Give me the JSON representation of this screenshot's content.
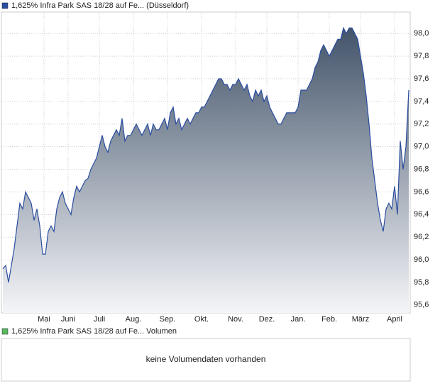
{
  "chart_data": {
    "type": "area",
    "legend": "1,625% Infra Park SAS 18/28 auf Fe... (Düsseldorf)",
    "color": "#2a4da0",
    "values": [
      95.92,
      95.95,
      95.8,
      95.95,
      96.1,
      96.3,
      96.5,
      96.45,
      96.6,
      96.55,
      96.5,
      96.35,
      96.45,
      96.3,
      96.05,
      96.05,
      96.25,
      96.3,
      96.25,
      96.45,
      96.55,
      96.6,
      96.5,
      96.45,
      96.4,
      96.55,
      96.65,
      96.6,
      96.65,
      96.7,
      96.72,
      96.8,
      96.85,
      96.9,
      97.0,
      97.1,
      97.0,
      96.95,
      97.05,
      97.1,
      97.15,
      97.1,
      97.25,
      97.05,
      97.1,
      97.1,
      97.15,
      97.2,
      97.15,
      97.1,
      97.15,
      97.2,
      97.1,
      97.2,
      97.15,
      97.15,
      97.2,
      97.25,
      97.15,
      97.3,
      97.35,
      97.2,
      97.25,
      97.15,
      97.2,
      97.25,
      97.2,
      97.25,
      97.3,
      97.3,
      97.35,
      97.35,
      97.4,
      97.45,
      97.5,
      97.55,
      97.6,
      97.6,
      97.55,
      97.55,
      97.5,
      97.55,
      97.55,
      97.6,
      97.55,
      97.5,
      97.55,
      97.45,
      97.4,
      97.5,
      97.45,
      97.5,
      97.4,
      97.45,
      97.35,
      97.3,
      97.25,
      97.2,
      97.2,
      97.25,
      97.3,
      97.3,
      97.3,
      97.3,
      97.35,
      97.5,
      97.5,
      97.5,
      97.55,
      97.6,
      97.7,
      97.75,
      97.85,
      97.9,
      97.85,
      97.8,
      97.85,
      97.9,
      97.95,
      97.95,
      98.05,
      98.0,
      98.05,
      98.05,
      98.0,
      97.95,
      97.8,
      97.65,
      97.45,
      97.2,
      96.9,
      96.7,
      96.5,
      96.35,
      96.25,
      96.45,
      96.5,
      96.45,
      96.65,
      96.4,
      97.05,
      96.8,
      97.0,
      97.5
    ],
    "xlim": [
      -0.5,
      143.5
    ],
    "xticks": [
      {
        "value": 14.5,
        "label": "Mai"
      },
      {
        "value": 23,
        "label": "Juni"
      },
      {
        "value": 34,
        "label": "Juli"
      },
      {
        "value": 46,
        "label": "Aug."
      },
      {
        "value": 58,
        "label": "Sep."
      },
      {
        "value": 70,
        "label": "Okt."
      },
      {
        "value": 82,
        "label": "Nov."
      },
      {
        "value": 93,
        "label": "Dez."
      },
      {
        "value": 104,
        "label": "Jan."
      },
      {
        "value": 115,
        "label": "Feb."
      },
      {
        "value": 126,
        "label": "März"
      },
      {
        "value": 138,
        "label": "April"
      }
    ],
    "ylim": [
      95.53,
      98.19
    ],
    "yticks": [
      {
        "value": 95.6,
        "label": "95,6"
      },
      {
        "value": 95.8,
        "label": "95,8"
      },
      {
        "value": 96.0,
        "label": "96,0"
      },
      {
        "value": 96.2,
        "label": "96,2"
      },
      {
        "value": 96.4,
        "label": "96,4"
      },
      {
        "value": 96.6,
        "label": "96,6"
      },
      {
        "value": 96.8,
        "label": "96,8"
      },
      {
        "value": 97.0,
        "label": "97,0"
      },
      {
        "value": 97.2,
        "label": "97,2"
      },
      {
        "value": 97.4,
        "label": "97,4"
      },
      {
        "value": 97.6,
        "label": "97,6"
      },
      {
        "value": 97.8,
        "label": "97,8"
      },
      {
        "value": 98.0,
        "label": "98,0"
      }
    ],
    "grid": true
  },
  "volume_panel": {
    "legend": "1,625% Infra Park SAS 18/28 auf Fe... Volumen",
    "color": "#5cb85c",
    "message": "keine Volumendaten vorhanden"
  }
}
